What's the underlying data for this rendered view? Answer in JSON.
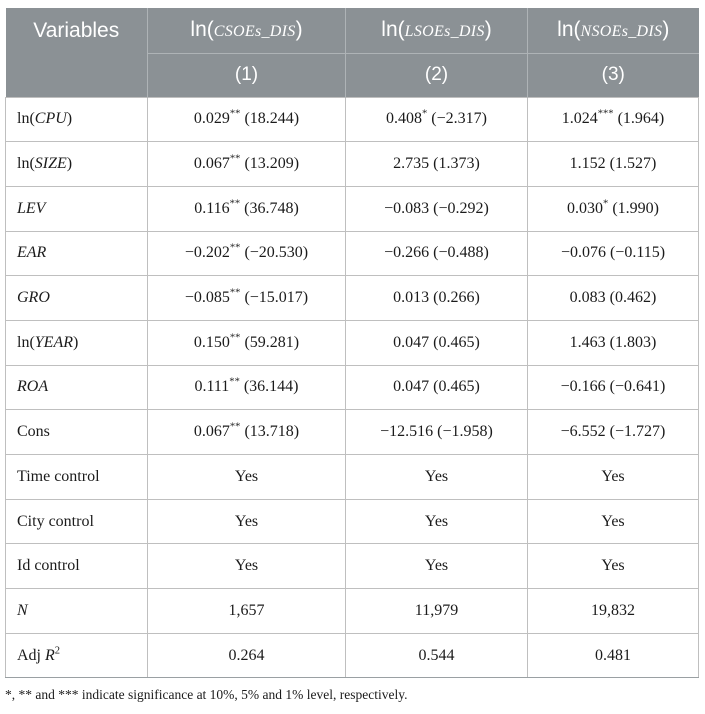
{
  "colors": {
    "page_bg": "#FFFFFF",
    "header_bg": "#8B9195",
    "header_text": "#FFFFFF",
    "header_divider": "#AEB3B6",
    "grid_line": "#BFBFBF",
    "text": "#1B1B1B"
  },
  "table": {
    "header": {
      "variables_label": "Variables",
      "columns": [
        {
          "pre": "ln(",
          "name": "CSOEs_DIS",
          "post": ")",
          "num": "(1)"
        },
        {
          "pre": "ln(",
          "name": "LSOEs_DIS",
          "post": ")",
          "num": "(2)"
        },
        {
          "pre": "ln(",
          "name": "NSOEs_DIS",
          "post": ")",
          "num": "(3)"
        }
      ]
    },
    "rows": [
      {
        "label": [
          {
            "t": "ln("
          },
          {
            "t": "CPU",
            "s": "i"
          },
          {
            "t": ")"
          }
        ],
        "cells": [
          [
            {
              "t": "0.029"
            },
            {
              "t": "**",
              "s": "sup"
            },
            {
              "t": " (18.244)"
            }
          ],
          [
            {
              "t": "0.408"
            },
            {
              "t": "*",
              "s": "sup"
            },
            {
              "t": " (−2.317)"
            }
          ],
          [
            {
              "t": "1.024"
            },
            {
              "t": "***",
              "s": "sup"
            },
            {
              "t": " (1.964)"
            }
          ]
        ]
      },
      {
        "label": [
          {
            "t": "ln("
          },
          {
            "t": "SIZE",
            "s": "i"
          },
          {
            "t": ")"
          }
        ],
        "cells": [
          [
            {
              "t": "0.067"
            },
            {
              "t": "**",
              "s": "sup"
            },
            {
              "t": " (13.209)"
            }
          ],
          [
            {
              "t": "2.735 (1.373)"
            }
          ],
          [
            {
              "t": "1.152 (1.527)"
            }
          ]
        ]
      },
      {
        "label": [
          {
            "t": "LEV",
            "s": "i"
          }
        ],
        "cells": [
          [
            {
              "t": "0.116"
            },
            {
              "t": "**",
              "s": "sup"
            },
            {
              "t": " (36.748)"
            }
          ],
          [
            {
              "t": "−0.083 (−0.292)"
            }
          ],
          [
            {
              "t": "0.030"
            },
            {
              "t": "*",
              "s": "sup"
            },
            {
              "t": " (1.990)"
            }
          ]
        ]
      },
      {
        "label": [
          {
            "t": "EAR",
            "s": "i"
          }
        ],
        "cells": [
          [
            {
              "t": "−0.202"
            },
            {
              "t": "**",
              "s": "sup"
            },
            {
              "t": " (−20.530)"
            }
          ],
          [
            {
              "t": "−0.266 (−0.488)"
            }
          ],
          [
            {
              "t": "−0.076 (−0.115)"
            }
          ]
        ]
      },
      {
        "label": [
          {
            "t": "GRO",
            "s": "i"
          }
        ],
        "cells": [
          [
            {
              "t": "−0.085"
            },
            {
              "t": "**",
              "s": "sup"
            },
            {
              "t": " (−15.017)"
            }
          ],
          [
            {
              "t": "0.013 (0.266)"
            }
          ],
          [
            {
              "t": "0.083 (0.462)"
            }
          ]
        ]
      },
      {
        "label": [
          {
            "t": "ln("
          },
          {
            "t": "YEAR",
            "s": "i"
          },
          {
            "t": ")"
          }
        ],
        "cells": [
          [
            {
              "t": "0.150"
            },
            {
              "t": "**",
              "s": "sup"
            },
            {
              "t": " (59.281)"
            }
          ],
          [
            {
              "t": "0.047 (0.465)"
            }
          ],
          [
            {
              "t": "1.463 (1.803)"
            }
          ]
        ]
      },
      {
        "label": [
          {
            "t": "ROA",
            "s": "i"
          }
        ],
        "cells": [
          [
            {
              "t": "0.111"
            },
            {
              "t": "**",
              "s": "sup"
            },
            {
              "t": " (36.144)"
            }
          ],
          [
            {
              "t": "0.047 (0.465)"
            }
          ],
          [
            {
              "t": "−0.166 (−0.641)"
            }
          ]
        ]
      },
      {
        "label": [
          {
            "t": "Cons"
          }
        ],
        "cells": [
          [
            {
              "t": "0.067"
            },
            {
              "t": "**",
              "s": "sup"
            },
            {
              "t": " (13.718)"
            }
          ],
          [
            {
              "t": "−12.516 (−1.958)"
            }
          ],
          [
            {
              "t": "−6.552 (−1.727)"
            }
          ]
        ]
      },
      {
        "label": [
          {
            "t": "Time control"
          }
        ],
        "cells": [
          [
            {
              "t": "Yes"
            }
          ],
          [
            {
              "t": "Yes"
            }
          ],
          [
            {
              "t": "Yes"
            }
          ]
        ]
      },
      {
        "label": [
          {
            "t": "City control"
          }
        ],
        "cells": [
          [
            {
              "t": "Yes"
            }
          ],
          [
            {
              "t": "Yes"
            }
          ],
          [
            {
              "t": "Yes"
            }
          ]
        ]
      },
      {
        "label": [
          {
            "t": "Id control"
          }
        ],
        "cells": [
          [
            {
              "t": "Yes"
            }
          ],
          [
            {
              "t": "Yes"
            }
          ],
          [
            {
              "t": "Yes"
            }
          ]
        ]
      },
      {
        "label": [
          {
            "t": "N",
            "s": "i"
          }
        ],
        "cells": [
          [
            {
              "t": "1,657"
            }
          ],
          [
            {
              "t": "11,979"
            }
          ],
          [
            {
              "t": "19,832"
            }
          ]
        ]
      },
      {
        "label": [
          {
            "t": "Adj "
          },
          {
            "t": "R",
            "s": "i"
          },
          {
            "t": "2",
            "s": "sup"
          }
        ],
        "cells": [
          [
            {
              "t": "0.264"
            }
          ],
          [
            {
              "t": "0.544"
            }
          ],
          [
            {
              "t": "0.481"
            }
          ]
        ]
      }
    ],
    "footnote": "*, ** and *** indicate significance at 10%, 5% and 1% level, respectively."
  }
}
